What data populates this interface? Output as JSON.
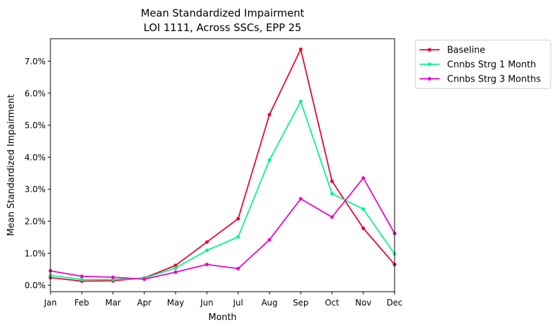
{
  "chart_data": {
    "type": "line",
    "title_line1": "Mean Standardized Impairment",
    "title_line2": "LOI 1111, Across SSCs, EPP 25",
    "xlabel": "Month",
    "ylabel": "Mean Standardized Impairment",
    "categories": [
      "Jan",
      "Feb",
      "Mar",
      "Apr",
      "May",
      "Jun",
      "Jul",
      "Aug",
      "Sep",
      "Oct",
      "Nov",
      "Dec"
    ],
    "ylim": [
      -0.2,
      7.7
    ],
    "yticks": [
      0,
      1,
      2,
      3,
      4,
      5,
      6,
      7
    ],
    "ytick_labels": [
      "0.0%",
      "1.0%",
      "2.0%",
      "3.0%",
      "4.0%",
      "5.0%",
      "6.0%",
      "7.0%"
    ],
    "y_unit": "%",
    "grid": false,
    "legend_position": "outside-right-top",
    "series": [
      {
        "name": "Baseline",
        "color": "#f0002a",
        "values": [
          0.24,
          0.13,
          0.14,
          0.23,
          0.62,
          1.35,
          2.08,
          5.33,
          7.37,
          3.25,
          1.78,
          0.65
        ]
      },
      {
        "name": "Cnnbs Strg 1 Month",
        "color": "#00f88a",
        "values": [
          0.31,
          0.18,
          0.18,
          0.22,
          0.54,
          1.09,
          1.51,
          3.91,
          5.74,
          2.86,
          2.38,
          0.98
        ]
      },
      {
        "name": "Cnnbs Strg 3 Months",
        "color": "#f000c8",
        "values": [
          0.45,
          0.28,
          0.25,
          0.19,
          0.41,
          0.65,
          0.52,
          1.42,
          2.7,
          2.13,
          3.35,
          1.62
        ]
      }
    ]
  }
}
